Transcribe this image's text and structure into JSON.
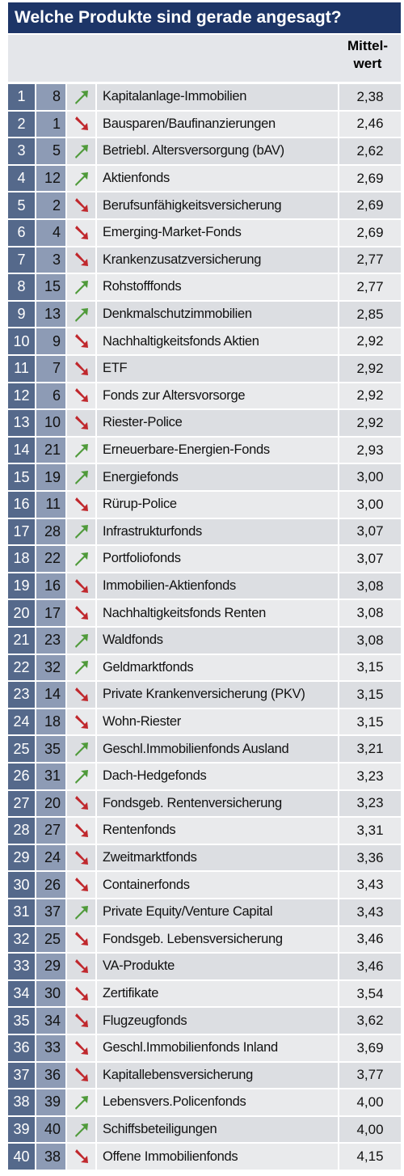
{
  "header": {
    "title": "Welche Produkte sind gerade angesagt?",
    "value_label": [
      "Mittel-",
      "wert"
    ]
  },
  "table": {
    "rows": [
      [
        1,
        8,
        "up",
        "Kapitalanlage-Immobilien",
        "2,38"
      ],
      [
        2,
        1,
        "down",
        "Bausparen/Baufinanzierungen",
        "2,46"
      ],
      [
        3,
        5,
        "up",
        "Betriebl. Altersversorgung (bAV)",
        "2,62"
      ],
      [
        4,
        12,
        "up",
        "Aktienfonds",
        "2,69"
      ],
      [
        5,
        2,
        "down",
        "Berufsunfähigkeitsversicherung",
        "2,69"
      ],
      [
        6,
        4,
        "down",
        "Emerging-Market-Fonds",
        "2,69"
      ],
      [
        7,
        3,
        "down",
        "Krankenzusatzversicherung",
        "2,77"
      ],
      [
        8,
        15,
        "up",
        "Rohstofffonds",
        "2,77"
      ],
      [
        9,
        13,
        "up",
        "Denkmalschutzimmobilien",
        "2,85"
      ],
      [
        10,
        9,
        "down",
        "Nachhaltigkeitsfonds Aktien",
        "2,92"
      ],
      [
        11,
        7,
        "down",
        "ETF",
        "2,92"
      ],
      [
        12,
        6,
        "down",
        "Fonds zur Altersvorsorge",
        "2,92"
      ],
      [
        13,
        10,
        "down",
        "Riester-Police",
        "2,92"
      ],
      [
        14,
        21,
        "up",
        "Erneuerbare-Energien-Fonds",
        "2,93"
      ],
      [
        15,
        19,
        "up",
        "Energiefonds",
        "3,00"
      ],
      [
        16,
        11,
        "down",
        "Rürup-Police",
        "3,00"
      ],
      [
        17,
        28,
        "up",
        "Infrastrukturfonds",
        "3,07"
      ],
      [
        18,
        22,
        "up",
        "Portfoliofonds",
        "3,07"
      ],
      [
        19,
        16,
        "down",
        "Immobilien-Aktienfonds",
        "3,08"
      ],
      [
        20,
        17,
        "down",
        "Nachhaltigkeitsfonds Renten",
        "3,08"
      ],
      [
        21,
        23,
        "up",
        "Waldfonds",
        "3,08"
      ],
      [
        22,
        32,
        "up",
        "Geldmarktfonds",
        "3,15"
      ],
      [
        23,
        14,
        "down",
        "Private Krankenversicherung (PKV)",
        "3,15"
      ],
      [
        24,
        18,
        "down",
        "Wohn-Riester",
        "3,15"
      ],
      [
        25,
        35,
        "up",
        "Geschl.Immobilienfonds Ausland",
        "3,21"
      ],
      [
        26,
        31,
        "up",
        "Dach-Hedgefonds",
        "3,23"
      ],
      [
        27,
        20,
        "down",
        "Fondsgeb. Rentenversicherung",
        "3,23"
      ],
      [
        28,
        27,
        "down",
        "Rentenfonds",
        "3,31"
      ],
      [
        29,
        24,
        "down",
        "Zweitmarktfonds",
        "3,36"
      ],
      [
        30,
        26,
        "down",
        "Containerfonds",
        "3,43"
      ],
      [
        31,
        37,
        "up",
        "Private Equity/Venture Capital",
        "3,43"
      ],
      [
        32,
        25,
        "down",
        "Fondsgeb. Lebensversicherung",
        "3,46"
      ],
      [
        33,
        29,
        "down",
        "VA-Produkte",
        "3,46"
      ],
      [
        34,
        30,
        "down",
        "Zertifikate",
        "3,54"
      ],
      [
        35,
        34,
        "down",
        "Flugzeugfonds",
        "3,62"
      ],
      [
        36,
        33,
        "down",
        "Geschl.Immobilienfonds Inland",
        "3,69"
      ],
      [
        37,
        36,
        "down",
        "Kapitallebensversicherung",
        "3,77"
      ],
      [
        38,
        39,
        "up",
        "Lebensvers.Policenfonds",
        "4,00"
      ],
      [
        39,
        40,
        "up",
        "Schiffsbeteiligungen",
        "4,00"
      ],
      [
        40,
        38,
        "down",
        "Offene Immobilienfonds",
        "4,15"
      ]
    ]
  }
}
